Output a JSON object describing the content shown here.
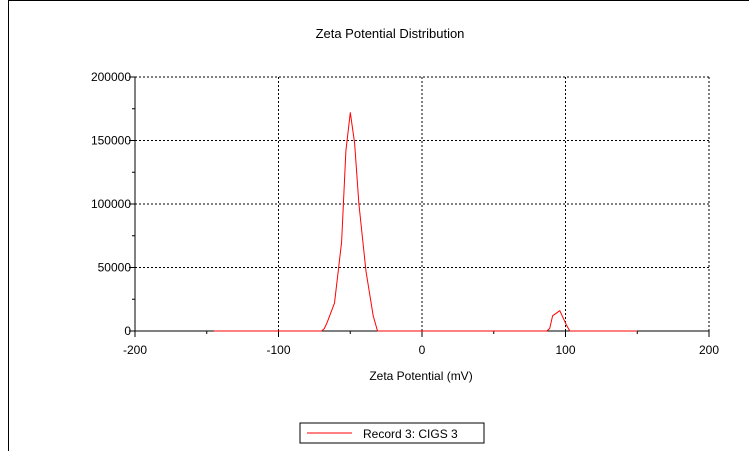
{
  "chart_data": {
    "type": "line",
    "title": "Zeta Potential Distribution",
    "xlabel": "Zeta Potential (mV)",
    "ylabel": "",
    "xlim": [
      -200,
      200
    ],
    "ylim": [
      0,
      200000
    ],
    "x_ticks": [
      "-200",
      "-100",
      "0",
      "100",
      "200"
    ],
    "y_ticks": [
      "0",
      "50000",
      "100000",
      "150000",
      "200000"
    ],
    "grid": "dashed",
    "legend_position": "bottom",
    "series": [
      {
        "name": "Record 3: CIGS 3",
        "color": "#ff0000",
        "x": [
          -145,
          -70,
          -68,
          -66,
          -61,
          -56,
          -53,
          -50,
          -47,
          -44,
          -39,
          -34,
          -31,
          87,
          89,
          91,
          96,
          101,
          103,
          150
        ],
        "y": [
          0,
          0,
          2000,
          7000,
          22000,
          70000,
          142000,
          172000,
          148000,
          100000,
          47000,
          12000,
          0,
          0,
          2000,
          12000,
          16000,
          4000,
          0,
          0
        ]
      }
    ]
  }
}
